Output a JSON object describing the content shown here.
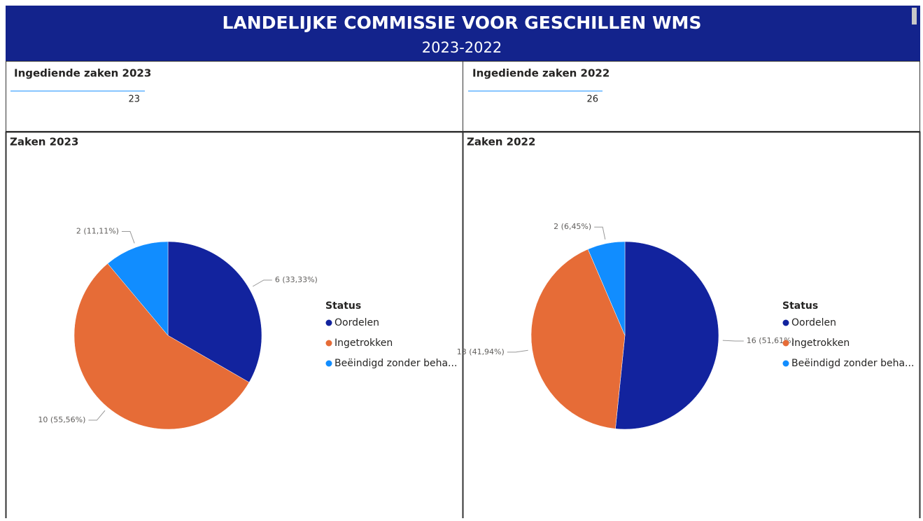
{
  "header": {
    "title": "LANDELIJKE COMMISSIE VOOR GESCHILLEN WMS",
    "subtitle": "2023-2022"
  },
  "cards": [
    {
      "title": "Ingediende zaken 2023",
      "value": 23
    },
    {
      "title": "Ingediende zaken 2022",
      "value": 26
    }
  ],
  "chart_data": [
    {
      "type": "pie",
      "title": "Zaken 2023",
      "legend_title": "Status",
      "categories": [
        "Oordelen",
        "Ingetrokken",
        "Beëindigd zonder beha..."
      ],
      "values": [
        6,
        10,
        2
      ],
      "value_labels": [
        "6 (33,33%)",
        "10 (55,56%)",
        "2 (11,11%)"
      ],
      "colors": [
        "#12239e",
        "#e66c37",
        "#118dff"
      ]
    },
    {
      "type": "pie",
      "title": "Zaken 2022",
      "legend_title": "Status",
      "categories": [
        "Oordelen",
        "Ingetrokken",
        "Beëindigd zonder beha..."
      ],
      "values": [
        16,
        13,
        2
      ],
      "value_labels": [
        "16 (51,61%)",
        "13 (41,94%)",
        "2 (6,45%)"
      ],
      "colors": [
        "#12239e",
        "#e66c37",
        "#118dff"
      ]
    }
  ]
}
